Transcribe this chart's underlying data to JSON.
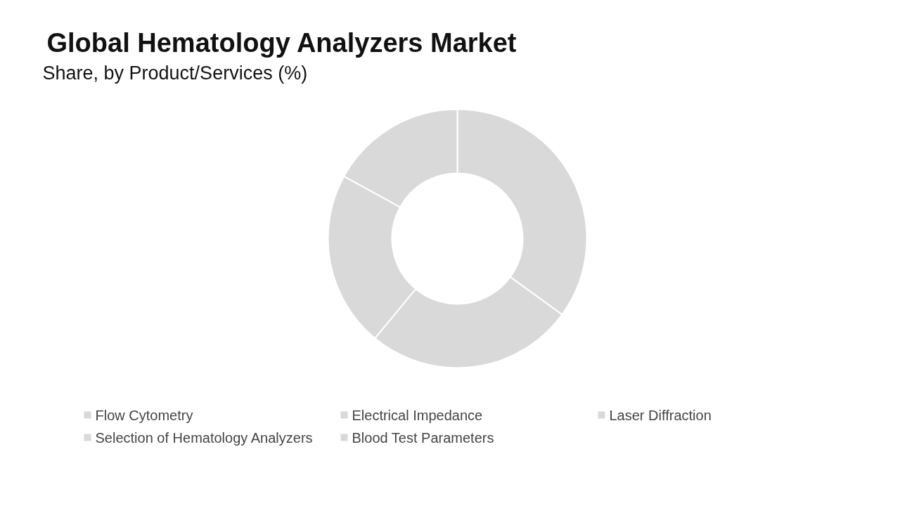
{
  "chart_data": {
    "type": "donut",
    "title": "Global Hematology Analyzers Market",
    "subtitle": "Share, by Product/Services (%)",
    "categories": [
      "Flow Cytometry",
      "Electrical Impedance",
      "Laser Diffraction",
      "Selection of Hematology Analyzers",
      "Blood Test Parameters"
    ],
    "values": [
      35,
      26,
      22,
      17,
      0
    ],
    "colors": [
      "#d9d9d9",
      "#d9d9d9",
      "#d9d9d9",
      "#d9d9d9",
      "#d9d9d9"
    ],
    "legend": "bottom"
  }
}
